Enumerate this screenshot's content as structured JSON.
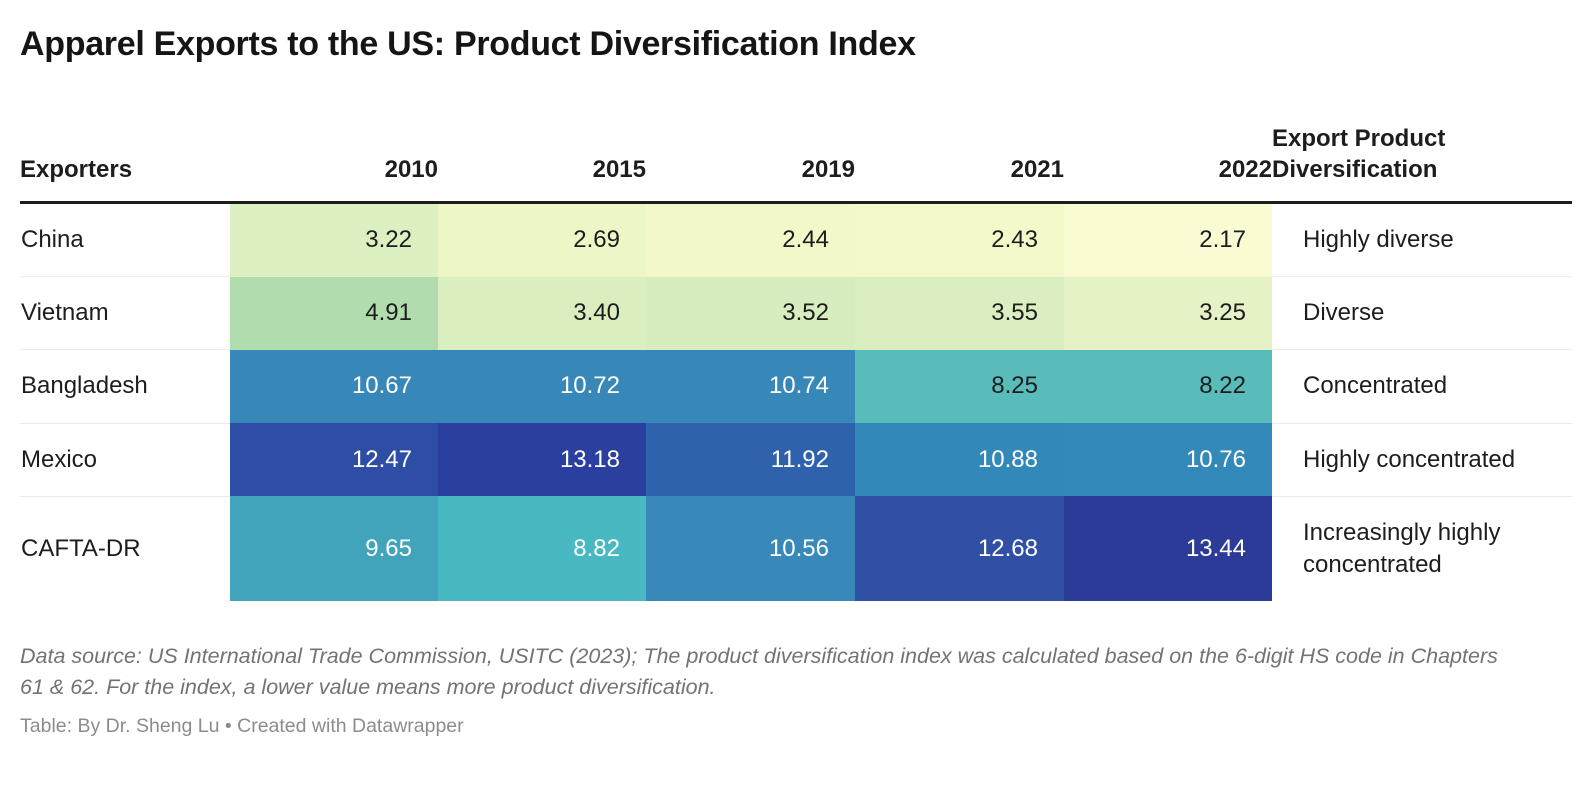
{
  "title": "Apparel Exports to the US: Product Diversification Index",
  "table": {
    "columns": [
      "Exporters",
      "2010",
      "2015",
      "2019",
      "2021",
      "2022",
      "Export Product Diversification"
    ],
    "rows": [
      {
        "exporter": "China",
        "diversification": "Highly diverse",
        "cells": [
          {
            "value": "3.22",
            "bg": "#ddf0c1",
            "fg": "#1d1d1d"
          },
          {
            "value": "2.69",
            "bg": "#edf6c5",
            "fg": "#1d1d1d"
          },
          {
            "value": "2.44",
            "bg": "#f3f8ca",
            "fg": "#1d1d1d"
          },
          {
            "value": "2.43",
            "bg": "#f5f9c9",
            "fg": "#1d1d1d"
          },
          {
            "value": "2.17",
            "bg": "#fbfbd3",
            "fg": "#1d1d1d"
          }
        ]
      },
      {
        "exporter": "Vietnam",
        "diversification": "Diverse",
        "cells": [
          {
            "value": "4.91",
            "bg": "#b1dcae",
            "fg": "#1d1d1d"
          },
          {
            "value": "3.40",
            "bg": "#daeec0",
            "fg": "#1d1d1d"
          },
          {
            "value": "3.52",
            "bg": "#d8edbf",
            "fg": "#1d1d1d"
          },
          {
            "value": "3.55",
            "bg": "#daeec2",
            "fg": "#1d1d1d"
          },
          {
            "value": "3.25",
            "bg": "#e5f2c6",
            "fg": "#1d1d1d"
          }
        ]
      },
      {
        "exporter": "Bangladesh",
        "diversification": "Concentrated",
        "cells": [
          {
            "value": "10.67",
            "bg": "#3787b8",
            "fg": "#ffffff"
          },
          {
            "value": "10.72",
            "bg": "#3787b8",
            "fg": "#ffffff"
          },
          {
            "value": "10.74",
            "bg": "#3787b8",
            "fg": "#ffffff"
          },
          {
            "value": "8.25",
            "bg": "#58bcba",
            "fg": "#1d1d1d"
          },
          {
            "value": "8.22",
            "bg": "#58bcba",
            "fg": "#1d1d1d"
          }
        ]
      },
      {
        "exporter": "Mexico",
        "diversification": "Highly concentrated",
        "cells": [
          {
            "value": "12.47",
            "bg": "#2e4da4",
            "fg": "#ffffff"
          },
          {
            "value": "13.18",
            "bg": "#2a3f9e",
            "fg": "#ffffff"
          },
          {
            "value": "11.92",
            "bg": "#2f62ad",
            "fg": "#ffffff"
          },
          {
            "value": "10.88",
            "bg": "#3288b9",
            "fg": "#ffffff"
          },
          {
            "value": "10.76",
            "bg": "#3289ba",
            "fg": "#ffffff"
          }
        ]
      },
      {
        "exporter": "CAFTA-DR",
        "diversification": "Increasingly highly concentrated",
        "cells": [
          {
            "value": "9.65",
            "bg": "#42a4bb",
            "fg": "#ffffff"
          },
          {
            "value": "8.82",
            "bg": "#48b8c2",
            "fg": "#ffffff"
          },
          {
            "value": "10.56",
            "bg": "#3889ba",
            "fg": "#ffffff"
          },
          {
            "value": "12.68",
            "bg": "#2f50a5",
            "fg": "#ffffff"
          },
          {
            "value": "13.44",
            "bg": "#2b3b97",
            "fg": "#ffffff"
          }
        ]
      }
    ]
  },
  "footer": {
    "source_note": "Data source: US International Trade Commission, USITC (2023); The product diversification index was calculated based on the 6-digit HS code in Chapters 61 & 62. For the index, a lower value means more product diversification.",
    "attribution": "Table: By Dr. Sheng Lu • Created with Datawrapper"
  },
  "chart_data": {
    "type": "heatmap",
    "title": "Apparel Exports to the US: Product Diversification Index",
    "rows": [
      "China",
      "Vietnam",
      "Bangladesh",
      "Mexico",
      "CAFTA-DR"
    ],
    "columns": [
      "2010",
      "2015",
      "2019",
      "2021",
      "2022"
    ],
    "values": [
      [
        3.22,
        2.69,
        2.44,
        2.43,
        2.17
      ],
      [
        4.91,
        3.4,
        3.52,
        3.55,
        3.25
      ],
      [
        10.67,
        10.72,
        10.74,
        8.25,
        8.22
      ],
      [
        12.47,
        13.18,
        11.92,
        10.88,
        10.76
      ],
      [
        9.65,
        8.82,
        10.56,
        12.68,
        13.44
      ]
    ],
    "row_annotations": [
      "Highly diverse",
      "Diverse",
      "Concentrated",
      "Highly concentrated",
      "Increasingly highly concentrated"
    ],
    "color_scale_note": "low values = pale yellow/green (more diversified), high values = dark blue (more concentrated)"
  }
}
